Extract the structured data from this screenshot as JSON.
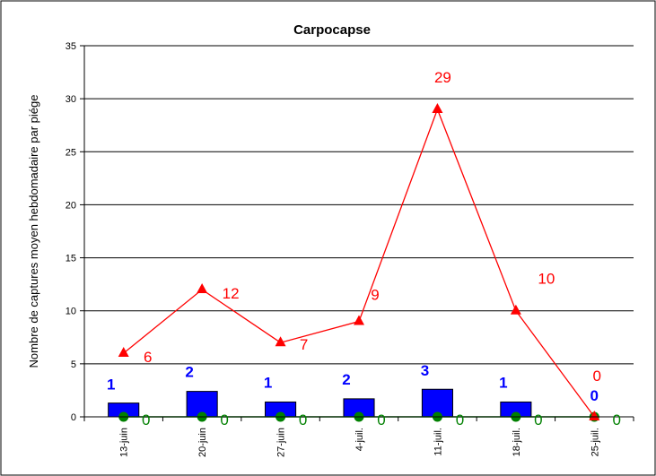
{
  "chart_data": {
    "type": "bar",
    "title": "Carpocapse",
    "xlabel": "",
    "ylabel": "Nombre de captures moyen hebdomadaire  par piége",
    "ylim": [
      0,
      35
    ],
    "yticks": [
      "0",
      "5",
      "10",
      "15",
      "20",
      "25",
      "30",
      "35"
    ],
    "categories": [
      "13-juin",
      "20-juin",
      "27-juin",
      "4-juil.",
      "11-juil.",
      "18-juil.",
      "25-juil."
    ],
    "grid": true,
    "legend": "none",
    "bars": {
      "values": [
        1.3,
        2.4,
        1.4,
        1.7,
        2.6,
        1.4,
        0
      ],
      "labels": [
        "1",
        "2",
        "1",
        "2",
        "3",
        "1",
        "0"
      ],
      "color": "#0000ff"
    },
    "line_red": {
      "values": [
        6,
        12,
        7,
        9,
        29,
        10,
        0
      ],
      "labels": [
        "6",
        "12",
        "7",
        "9",
        "29",
        "10",
        "0"
      ],
      "color": "#ff0000",
      "marker": "triangle"
    },
    "line_green": {
      "values": [
        0,
        0,
        0,
        0,
        0,
        0,
        0
      ],
      "labels": [
        "0",
        "0",
        "0",
        "0",
        "0",
        "0",
        "0"
      ],
      "color": "#008000",
      "marker": "circle"
    }
  }
}
